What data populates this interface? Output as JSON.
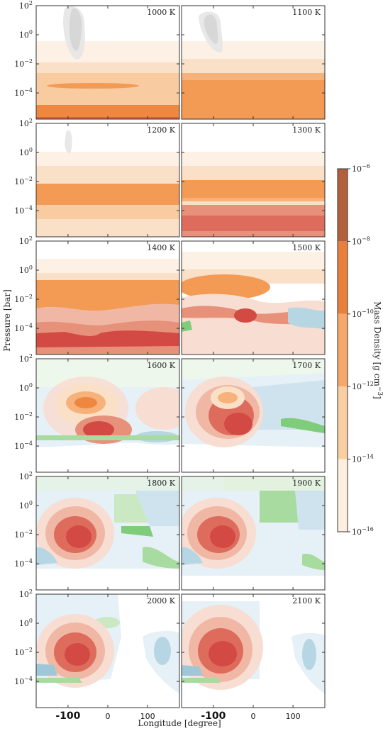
{
  "chart_data": {
    "type": "heatmap",
    "panels": [
      {
        "label": "1000 K"
      },
      {
        "label": "1100 K"
      },
      {
        "label": "1200 K"
      },
      {
        "label": "1300 K"
      },
      {
        "label": "1400 K"
      },
      {
        "label": "1500 K"
      },
      {
        "label": "1600 K"
      },
      {
        "label": "1700 K"
      },
      {
        "label": "1800 K"
      },
      {
        "label": "1900 K"
      },
      {
        "label": "2000 K"
      },
      {
        "label": "2100 K"
      }
    ],
    "xlabel": "Longitude [degree]",
    "ylabel": "Pressure [bar]",
    "x_ticks": [
      {
        "value": -100,
        "label": "-100"
      },
      {
        "value": 0,
        "label": "0"
      },
      {
        "value": 100,
        "label": "100"
      }
    ],
    "xlim": [
      -180,
      180
    ],
    "y_ticks": [
      {
        "exp": -4,
        "base": "10",
        "sup": "−4"
      },
      {
        "exp": -2,
        "base": "10",
        "sup": "−2"
      },
      {
        "exp": 0,
        "base": "10",
        "sup": "0"
      },
      {
        "exp": 2,
        "base": "10",
        "sup": "2"
      }
    ],
    "ylim_log10": [
      2,
      -5.8
    ],
    "y_scale": "log",
    "colorbar": {
      "label": "Mass Density [g cm",
      "label_sup": "−3",
      "label_end": "]",
      "scale": "log",
      "ticks": [
        {
          "exp": -6,
          "base": "10",
          "sup": "−6"
        },
        {
          "exp": -8,
          "base": "10",
          "sup": "−8"
        },
        {
          "exp": -10,
          "base": "10",
          "sup": "−10"
        },
        {
          "exp": -12,
          "base": "10",
          "sup": "−12"
        },
        {
          "exp": -14,
          "base": "10",
          "sup": "−14"
        },
        {
          "exp": -16,
          "base": "10",
          "sup": "−16"
        }
      ],
      "colors": [
        "#b0603a",
        "#e8803c",
        "#f5a86a",
        "#f9cfa2",
        "#fdeee0"
      ]
    }
  }
}
